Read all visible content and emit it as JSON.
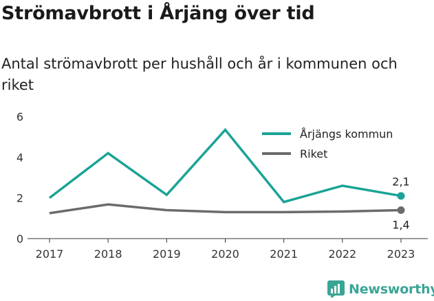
{
  "header": {
    "title": "Strömavbrott i Årjäng över tid",
    "subtitle": "Antal strömavbrott per hushåll och år i kommunen och riket"
  },
  "brand": {
    "name": "Newsworthy",
    "icon": "newsworthy-logo-icon",
    "color": "#3aa596"
  },
  "chart_data": {
    "type": "line",
    "x": [
      2017,
      2018,
      2019,
      2020,
      2021,
      2022,
      2023
    ],
    "series": [
      {
        "name": "Årjängs kommun",
        "color": "#1aa396",
        "values": [
          2.0,
          4.2,
          2.15,
          5.35,
          1.8,
          2.6,
          2.1
        ],
        "end_label": "2,1"
      },
      {
        "name": "Riket",
        "color": "#6b6b6e",
        "values": [
          1.25,
          1.68,
          1.4,
          1.3,
          1.3,
          1.33,
          1.4
        ],
        "end_label": "1,4"
      }
    ],
    "ylim": [
      0,
      6
    ],
    "yticks": [
      "0",
      "2",
      "4",
      "6"
    ],
    "grid": false,
    "legend_position": "top-right"
  }
}
